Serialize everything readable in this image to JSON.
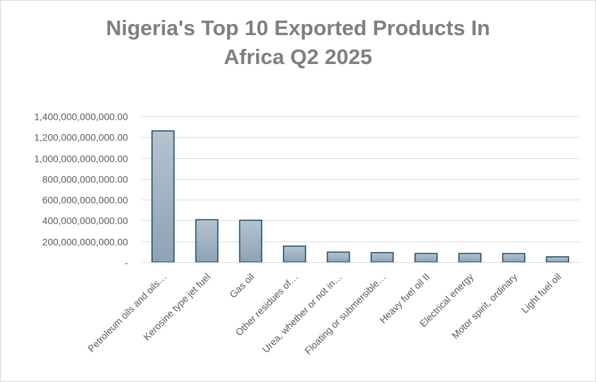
{
  "chart_data": {
    "type": "bar",
    "title_lines": [
      "Nigeria's Top 10 Exported Products In",
      "Africa Q2 2025"
    ],
    "categories": [
      "Petroleum oils and oils…",
      "Kerosine type jet fuel",
      "Gas oil",
      "Other residues of…",
      "Urea, whether or not in…",
      "Floating or submersible…",
      "Heavy fuel oil II",
      "Electrical energy",
      "Motor spirit, ordinary",
      "Light fuel oil"
    ],
    "values": [
      1260000000000,
      408000000000,
      403000000000,
      155000000000,
      97000000000,
      92000000000,
      84000000000,
      84000000000,
      83000000000,
      52000000000
    ],
    "ylim": [
      0,
      1400000000000
    ],
    "yticks": [
      0,
      200000000000,
      400000000000,
      600000000000,
      800000000000,
      1000000000000,
      1200000000000,
      1400000000000
    ],
    "ytick_labels": [
      "-",
      "200,000,000,000.00",
      "400,000,000,000.00",
      "600,000,000,000.00",
      "800,000,000,000.00",
      "1,000,000,000,000.00",
      "1,200,000,000,000.00",
      "1,400,000,000,000.00"
    ],
    "xlabel": "",
    "ylabel": "",
    "grid": true,
    "legend": "none",
    "colors": {
      "bar_fill_top": "#b4c3d0",
      "bar_fill_bottom": "#8ea2b5",
      "bar_edge": "#1f4e66",
      "grid": "#d9d9d9",
      "title": "#7f7f7f",
      "text": "#595959"
    }
  }
}
